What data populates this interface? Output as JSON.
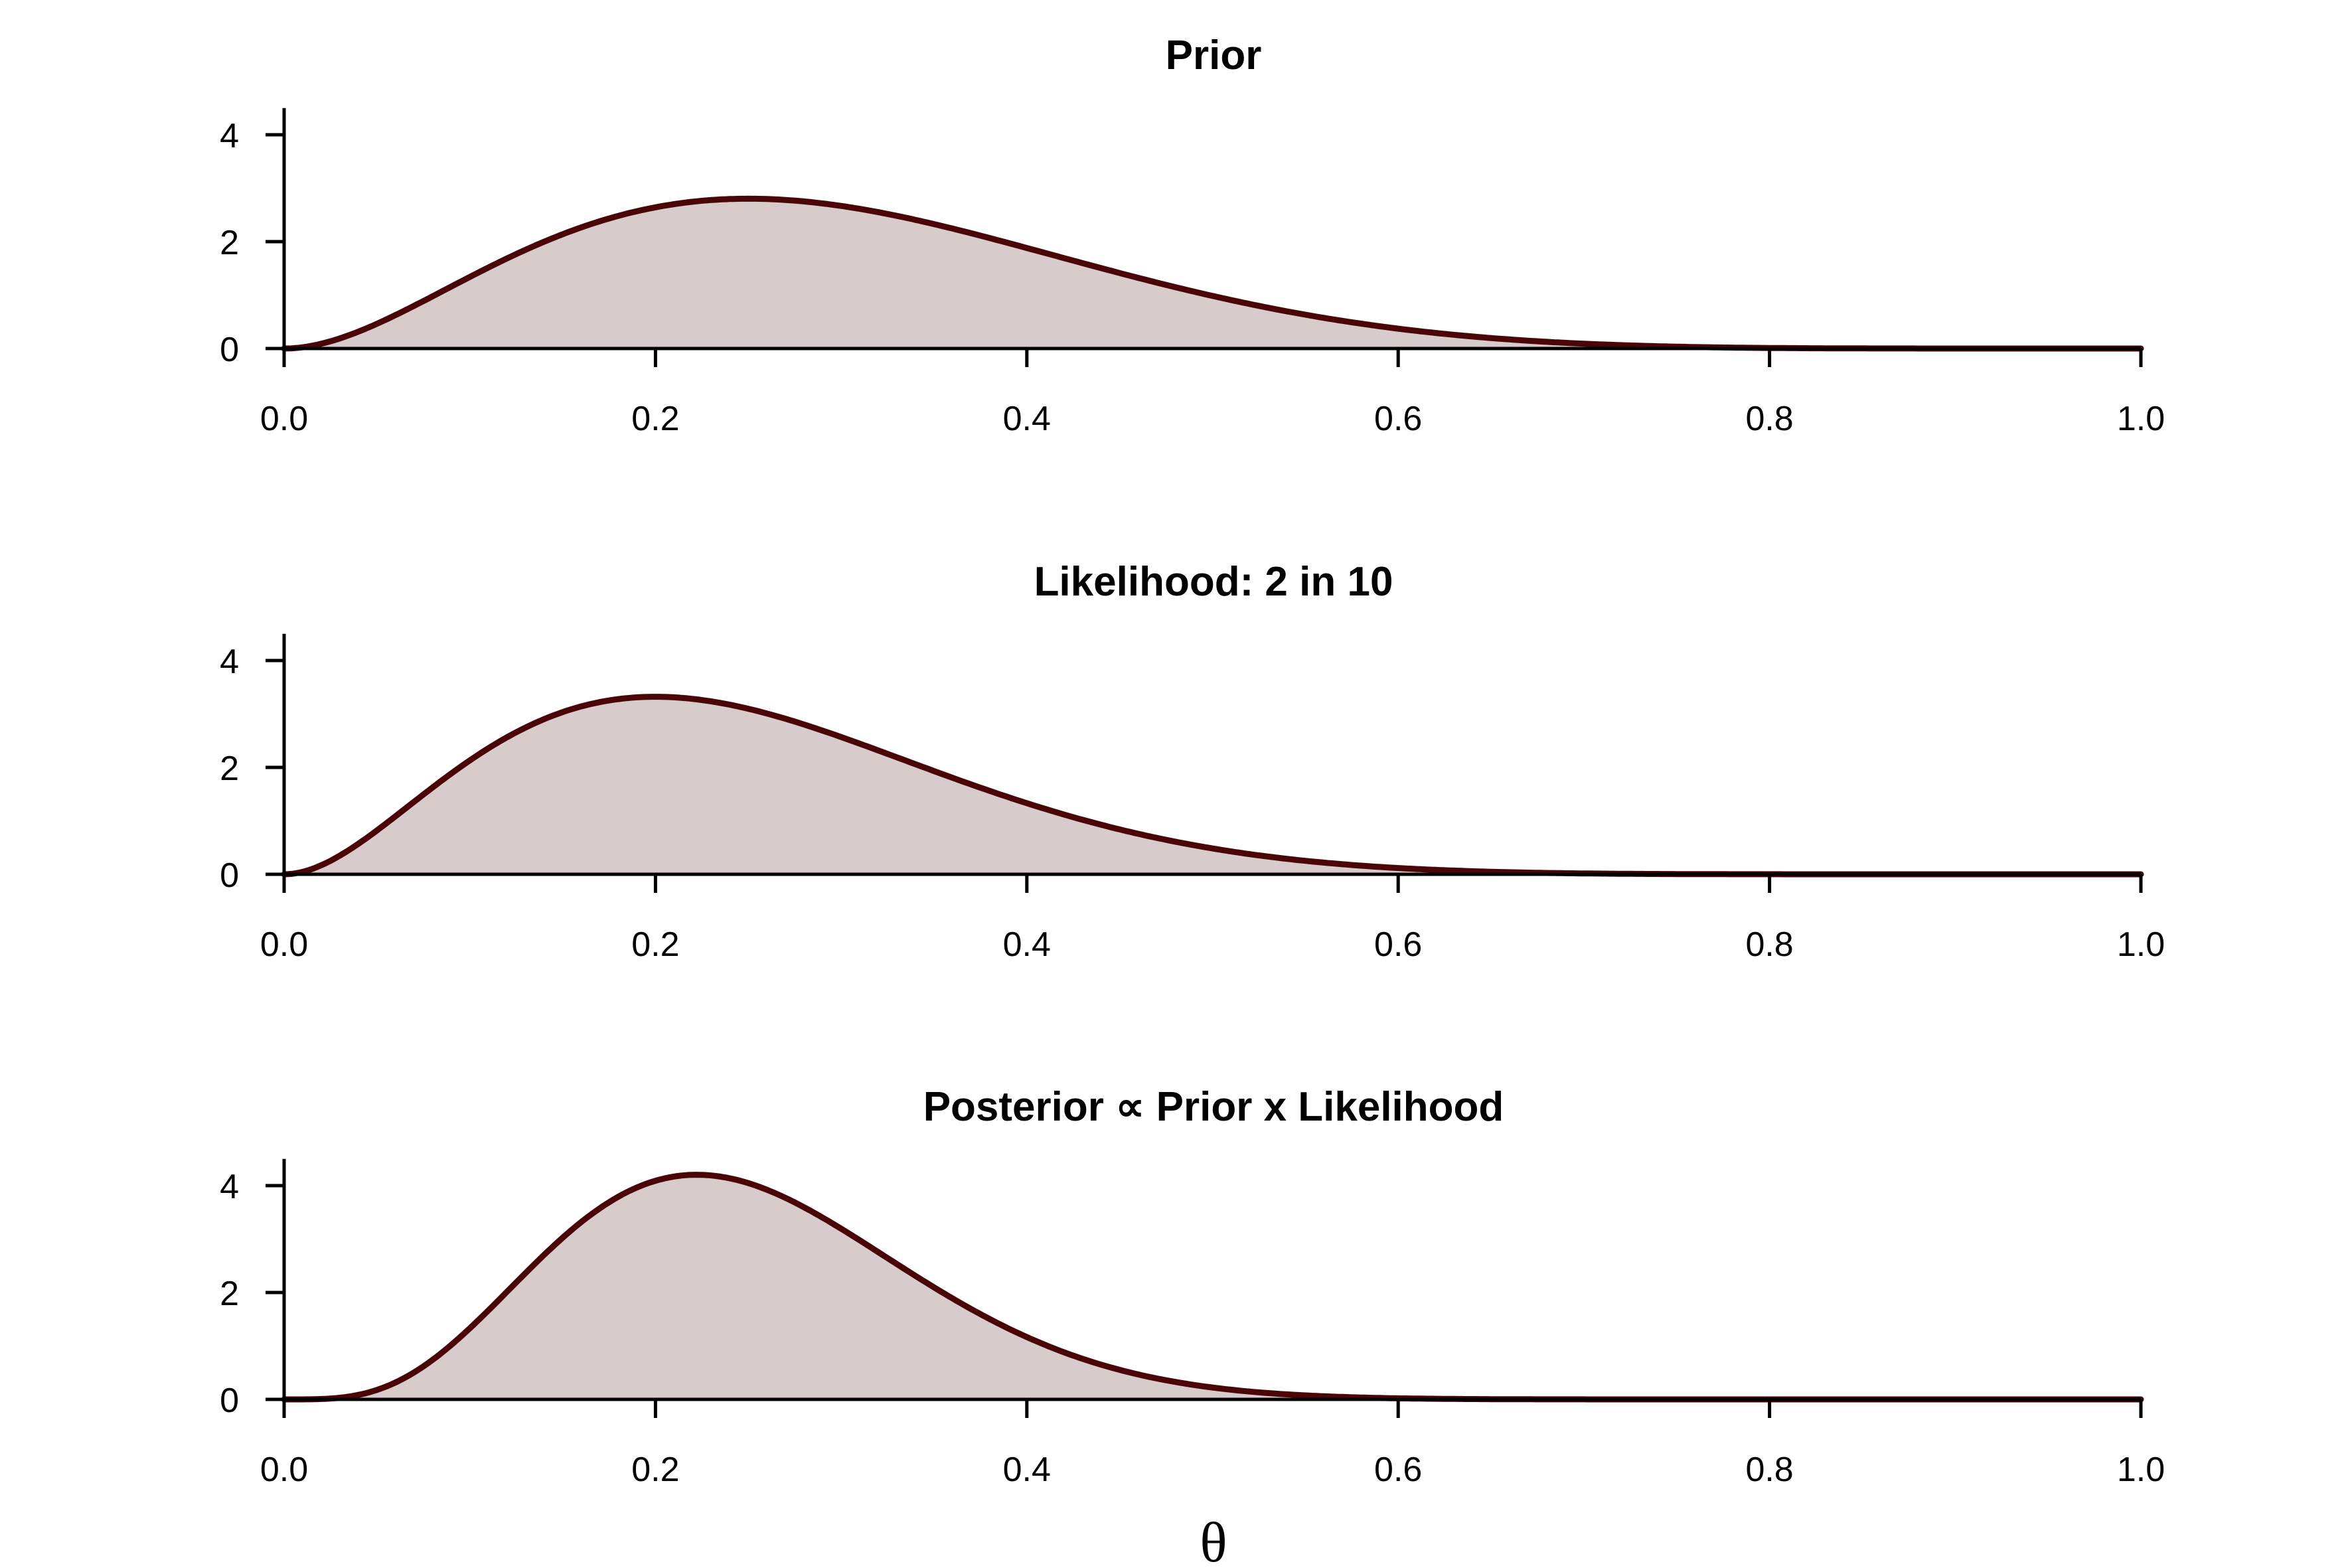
{
  "colors": {
    "line": "#4a0606",
    "fill": "#d8cbcb"
  },
  "figure": {
    "xlabel": "θ"
  },
  "chart_data": [
    {
      "type": "area",
      "title": "Prior",
      "xlabel": "",
      "ylabel": "",
      "xlim": [
        0,
        1
      ],
      "ylim": [
        0,
        4.5
      ],
      "x_ticks": [
        "0.0",
        "0.2",
        "0.4",
        "0.6",
        "0.8",
        "1.0"
      ],
      "y_ticks": [
        "0",
        "2",
        "4"
      ],
      "grid": false,
      "distribution": {
        "family": "beta",
        "alpha": 3,
        "beta": 7
      },
      "x": [
        0,
        0.05,
        0.1,
        0.15,
        0.2,
        0.25,
        0.3,
        0.35,
        0.4,
        0.45,
        0.5,
        0.55,
        0.6,
        0.65,
        0.7,
        0.75,
        0.8,
        0.85,
        0.9,
        0.95,
        1.0
      ],
      "values": [
        0,
        0.53,
        1.49,
        2.27,
        2.68,
        2.78,
        2.54,
        2.19,
        1.87,
        1.37,
        0.98,
        0.66,
        0.41,
        0.23,
        0.11,
        0.05,
        0.02,
        0.0,
        0.0,
        0.0,
        0
      ]
    },
    {
      "type": "area",
      "title": "Likelihood: 2 in 10",
      "xlabel": "",
      "ylabel": "",
      "xlim": [
        0,
        1
      ],
      "ylim": [
        0,
        4.5
      ],
      "x_ticks": [
        "0.0",
        "0.2",
        "0.4",
        "0.6",
        "0.8",
        "1.0"
      ],
      "y_ticks": [
        "0",
        "2",
        "4"
      ],
      "grid": false,
      "distribution": {
        "family": "beta",
        "alpha": 3,
        "beta": 9
      },
      "x": [
        0,
        0.05,
        0.1,
        0.15,
        0.2,
        0.25,
        0.3,
        0.35,
        0.4,
        0.45,
        0.5,
        0.55,
        0.6,
        0.65,
        0.7,
        0.75,
        0.8,
        0.85,
        0.9,
        0.95,
        1.0
      ],
      "values": [
        0,
        0.75,
        2.13,
        3.01,
        3.3,
        3.11,
        2.56,
        1.94,
        1.33,
        0.84,
        0.49,
        0.26,
        0.13,
        0.05,
        0.02,
        0.01,
        0.0,
        0.0,
        0.0,
        0.0,
        0
      ]
    },
    {
      "type": "area",
      "title": "Posterior ∝ Prior x Likelihood",
      "xlabel": "θ",
      "ylabel": "",
      "xlim": [
        0,
        1
      ],
      "ylim": [
        0,
        4.5
      ],
      "x_ticks": [
        "0.0",
        "0.2",
        "0.4",
        "0.6",
        "0.8",
        "1.0"
      ],
      "y_ticks": [
        "0",
        "2",
        "4"
      ],
      "grid": false,
      "distribution": {
        "family": "beta",
        "alpha": 5,
        "beta": 15
      },
      "x": [
        0,
        0.05,
        0.1,
        0.15,
        0.2,
        0.25,
        0.3,
        0.35,
        0.4,
        0.45,
        0.5,
        0.55,
        0.6,
        0.65,
        0.7,
        0.75,
        0.8,
        0.85,
        0.9,
        0.95,
        1.0
      ],
      "values": [
        0,
        0.23,
        1.6,
        3.3,
        4.17,
        4.0,
        3.07,
        1.95,
        1.05,
        0.48,
        0.19,
        0.06,
        0.02,
        0.0,
        0.0,
        0.0,
        0.0,
        0.0,
        0.0,
        0.0,
        0
      ]
    }
  ]
}
